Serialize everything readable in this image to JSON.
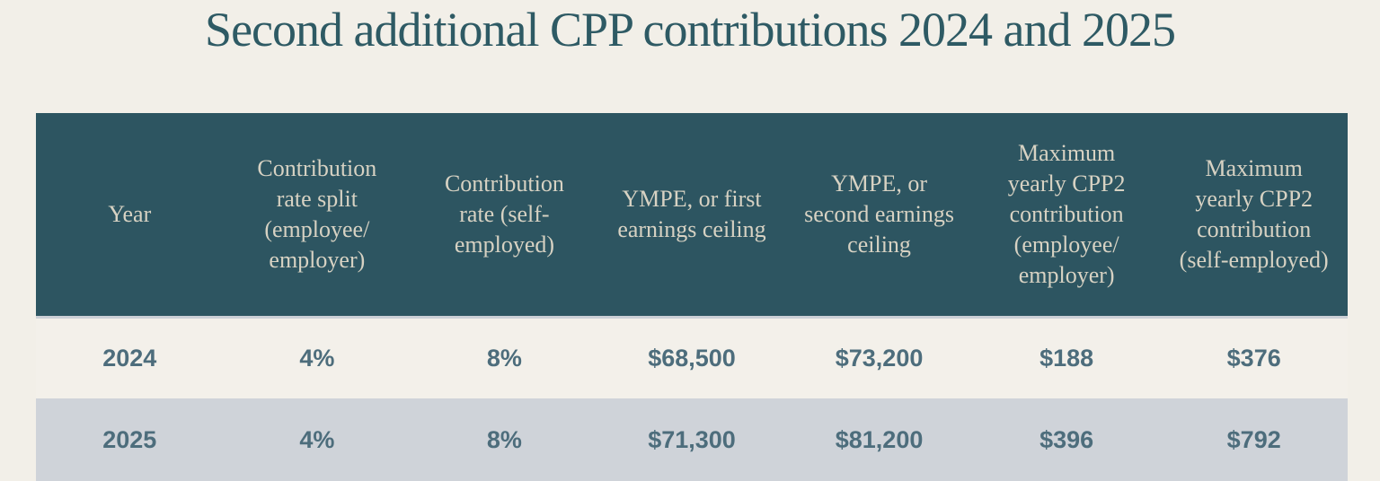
{
  "page": {
    "title": "Second additional CPP contributions 2024 and 2025"
  },
  "colors": {
    "page_background": "#f2efe8",
    "header_background": "#2d5561",
    "header_text": "#d7d2c3",
    "data_text": "#4d6d7c",
    "row_2024_background": "#f3f0ea",
    "row_2025_background": "#cfd3d9",
    "title_text": "#2e5a64"
  },
  "chart_data": {
    "type": "table",
    "title": "Second additional CPP contributions 2024 and 2025",
    "columns": [
      "Year",
      "Contribution rate split (employee/employer)",
      "Contribution rate (self-employed)",
      "YMPE, or first earnings ceiling",
      "YMPE, or second earnings ceiling",
      "Maximum yearly CPP2 contribution (employee/employer)",
      "Maximum yearly CPP2 contribution (self-employed)"
    ],
    "rows": [
      [
        "2024",
        "4%",
        "8%",
        "$68,500",
        "$73,200",
        "$188",
        "$376"
      ],
      [
        "2025",
        "4%",
        "8%",
        "$71,300",
        "$81,200",
        "$396",
        "$792"
      ]
    ]
  },
  "table": {
    "headers": [
      "Year",
      "Contribution\nrate split\n(employee/\nemployer)",
      "Contribution\nrate (self-\nemployed)",
      "YMPE, or first\nearnings ceiling",
      "YMPE, or\nsecond earnings\nceiling",
      "Maximum\nyearly CPP2\ncontribution\n(employee/\nemployer)",
      "Maximum\nyearly CPP2\ncontribution\n(self-employed)"
    ],
    "rows": [
      {
        "cells": [
          "2024",
          "4%",
          "8%",
          "$68,500",
          "$73,200",
          "$188",
          "$376"
        ]
      },
      {
        "cells": [
          "2025",
          "4%",
          "8%",
          "$71,300",
          "$81,200",
          "$396",
          "$792"
        ]
      }
    ]
  }
}
